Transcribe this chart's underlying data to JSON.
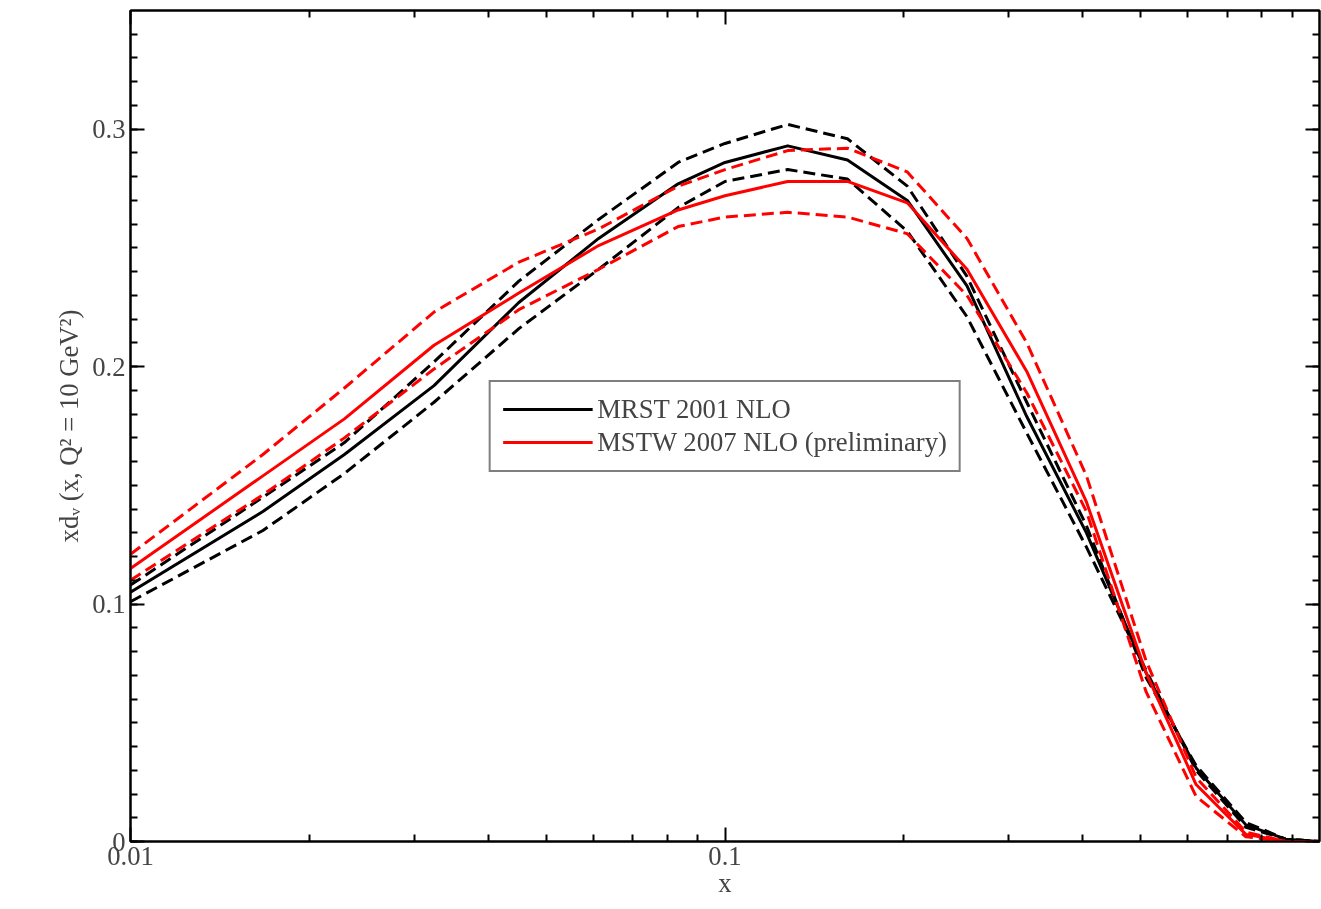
{
  "chart_data": {
    "type": "line",
    "xlabel": "x",
    "ylabel": "xdᵥ (x, Q² = 10 GeV²)",
    "x": [
      0.01,
      0.0167,
      0.0229,
      0.0324,
      0.045,
      0.0613,
      0.0834,
      0.1,
      0.1275,
      0.1607,
      0.2026,
      0.2553,
      0.3218,
      0.4055,
      0.511,
      0.62,
      0.752,
      0.877,
      1
    ],
    "series": [
      {
        "name": "MRST 2001 NLO",
        "color": "#000000",
        "line_style": "solid",
        "values": [
          0.105,
          0.139,
          0.163,
          0.192,
          0.227,
          0.254,
          0.277,
          0.286,
          0.293,
          0.287,
          0.27,
          0.234,
          0.179,
          0.13,
          0.071,
          0.031,
          0.007,
          0.001,
          0
        ]
      },
      {
        "color": "#000000",
        "line_style": "dashed",
        "values": [
          0.108,
          0.145,
          0.168,
          0.202,
          0.236,
          0.262,
          0.286,
          0.294,
          0.302,
          0.296,
          0.276,
          0.238,
          0.185,
          0.133,
          0.069,
          0.032,
          0.008,
          0.001,
          0
        ]
      },
      {
        "color": "#000000",
        "line_style": "dashed",
        "values": [
          0.101,
          0.131,
          0.155,
          0.185,
          0.216,
          0.241,
          0.267,
          0.278,
          0.283,
          0.279,
          0.257,
          0.221,
          0.172,
          0.124,
          0.072,
          0.03,
          0.006,
          0.001,
          0
        ]
      },
      {
        "name": "MSTW 2007 NLO (preliminary)",
        "color": "#ff0000",
        "line_style": "solid",
        "values": [
          0.115,
          0.154,
          0.178,
          0.209,
          0.231,
          0.251,
          0.266,
          0.272,
          0.278,
          0.278,
          0.269,
          0.241,
          0.198,
          0.143,
          0.071,
          0.024,
          0.003,
          0,
          0
        ]
      },
      {
        "color": "#ff0000",
        "line_style": "dashed",
        "values": [
          0.121,
          0.163,
          0.191,
          0.223,
          0.244,
          0.258,
          0.276,
          0.283,
          0.291,
          0.292,
          0.282,
          0.254,
          0.21,
          0.154,
          0.076,
          0.027,
          0.004,
          0,
          0
        ]
      },
      {
        "color": "#ff0000",
        "line_style": "dashed",
        "values": [
          0.11,
          0.146,
          0.17,
          0.199,
          0.224,
          0.241,
          0.259,
          0.263,
          0.265,
          0.263,
          0.256,
          0.23,
          0.189,
          0.139,
          0.063,
          0.019,
          0.002,
          0,
          0
        ]
      }
    ],
    "log": "x",
    "xlim": [
      0.01,
      1
    ],
    "ylim": [
      0,
      0.35
    ],
    "xticks": [
      0.01,
      0.1,
      {
        "value": 0.02,
        "label": null
      },
      {
        "value": 0.03,
        "label": null
      },
      {
        "value": 0.04,
        "label": null
      },
      {
        "value": 0.05,
        "label": null
      },
      {
        "value": 0.06,
        "label": null
      },
      {
        "value": 0.07,
        "label": null
      },
      {
        "value": 0.08,
        "label": null
      },
      {
        "value": 0.09,
        "label": null
      },
      {
        "value": 0.2,
        "label": null
      },
      {
        "value": 0.3,
        "label": null
      },
      {
        "value": 0.4,
        "label": null
      },
      {
        "value": 0.5,
        "label": null
      },
      {
        "value": 0.6,
        "label": null
      },
      {
        "value": 0.7,
        "label": null
      },
      {
        "value": 0.8,
        "label": null
      },
      {
        "value": 0.9,
        "label": null
      }
    ],
    "yticks": [
      0,
      0.1,
      0.2,
      0.3
    ],
    "grid": false,
    "legend": "center"
  }
}
